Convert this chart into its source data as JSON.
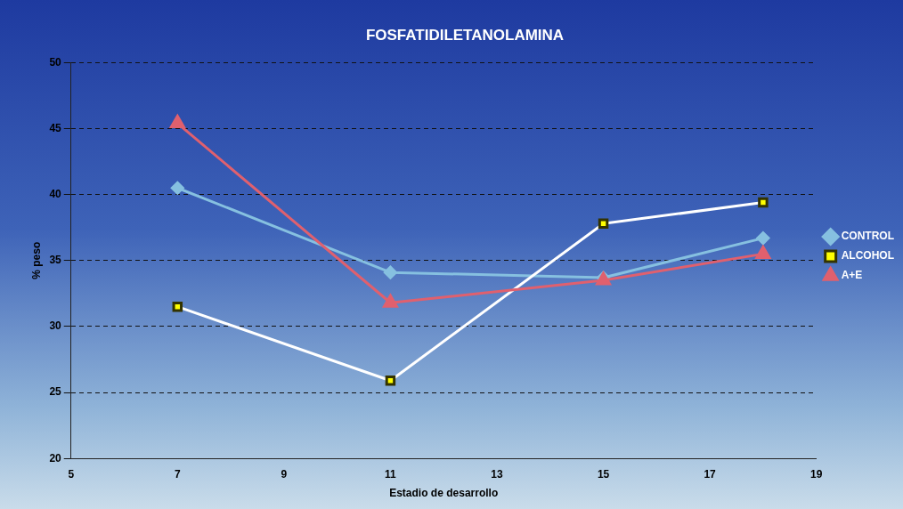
{
  "chart_data": {
    "type": "line",
    "title": "FOSFATIDILETANOLAMINA",
    "xlabel": "Estadio de desarrollo",
    "ylabel": "% peso",
    "x": [
      7,
      11,
      15,
      18
    ],
    "series": [
      {
        "name": "CONTROL",
        "color": "#86c0e0",
        "marker": "diamond",
        "values": [
          40.5,
          34.1,
          33.7,
          36.7
        ]
      },
      {
        "name": "ALCOHOL",
        "color": "#ffffff",
        "marker": "square",
        "values": [
          31.5,
          25.9,
          37.8,
          39.4
        ]
      },
      {
        "name": "A+E",
        "color": "#e0606e",
        "marker": "triangle",
        "values": [
          45.4,
          31.8,
          33.5,
          35.5
        ]
      }
    ],
    "xlim": [
      5,
      19
    ],
    "xticks": [
      5,
      7,
      9,
      11,
      13,
      15,
      17,
      19
    ],
    "ylim": [
      20,
      50
    ],
    "yticks": [
      20,
      25,
      30,
      35,
      40,
      45,
      50
    ],
    "grid": "y",
    "legend": "right"
  }
}
